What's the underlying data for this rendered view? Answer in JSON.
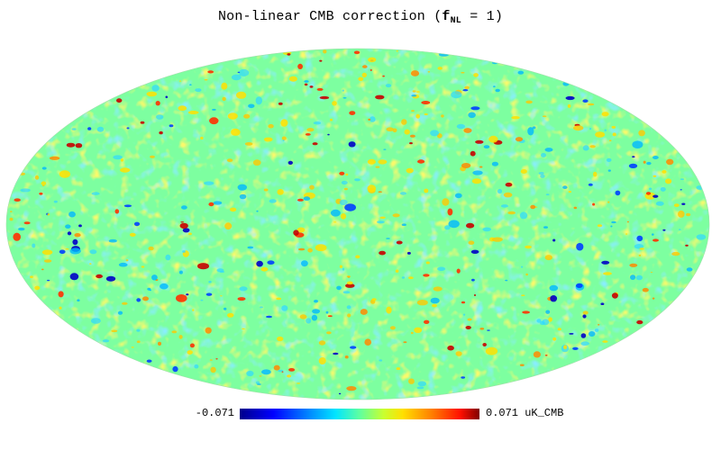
{
  "title": {
    "prefix": "Non-linear CMB correction (",
    "f": "f",
    "sub": "NL",
    "suffix": " = 1)"
  },
  "colorbar": {
    "min_label": "-0.071",
    "max_label": "0.071 uK_CMB",
    "min": -0.071,
    "max": 0.071,
    "colormap": [
      "#00008a",
      "#0000ff",
      "#0080ff",
      "#00e5ff",
      "#5fffa0",
      "#c8ff30",
      "#ffe000",
      "#ff8000",
      "#ff1000",
      "#800000"
    ]
  },
  "map": {
    "projection": "Mollweide",
    "background_color": "#7dffa0"
  }
}
